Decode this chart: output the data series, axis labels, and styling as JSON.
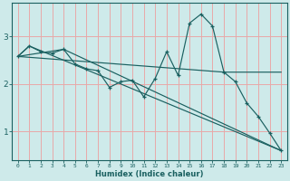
{
  "xlabel": "Humidex (Indice chaleur)",
  "ylabel": "",
  "bg_color": "#ceeaea",
  "line_color": "#1a6060",
  "grid_color": "#e8a8a8",
  "xlim": [
    -0.5,
    23.5
  ],
  "ylim": [
    0.4,
    3.7
  ],
  "yticks": [
    1,
    2,
    3
  ],
  "xticks": [
    0,
    1,
    2,
    3,
    4,
    5,
    6,
    7,
    8,
    9,
    10,
    11,
    12,
    13,
    14,
    15,
    16,
    17,
    18,
    19,
    20,
    21,
    22,
    23
  ],
  "line1_x": [
    0,
    1,
    2,
    3,
    4,
    5,
    6,
    7,
    8,
    9,
    10,
    11,
    12,
    13,
    14,
    15,
    16,
    17,
    18,
    19,
    20,
    21,
    22,
    23
  ],
  "line1_y": [
    2.58,
    2.8,
    2.68,
    2.65,
    2.73,
    2.42,
    2.32,
    2.28,
    1.93,
    2.05,
    2.08,
    1.73,
    2.12,
    2.68,
    2.18,
    3.28,
    3.47,
    3.22,
    2.25,
    2.05,
    1.6,
    1.32,
    0.97,
    0.6
  ],
  "line2_x": [
    0,
    4,
    23
  ],
  "line2_y": [
    2.58,
    2.73,
    0.6
  ],
  "line3_x": [
    0,
    1,
    23
  ],
  "line3_y": [
    2.58,
    2.8,
    0.6
  ],
  "line4_x": [
    0,
    18,
    23
  ],
  "line4_y": [
    2.58,
    2.25,
    2.25
  ]
}
